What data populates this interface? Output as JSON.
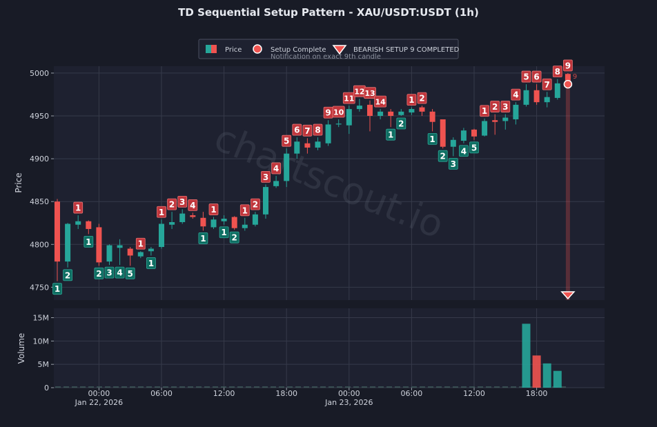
{
  "chart_data": {
    "type": "candlestick",
    "title": "TD Sequential Setup Pattern - XAU/USDT:USDT (1h)",
    "watermark": "chartscout.io",
    "legend": {
      "placement": "top-center",
      "items": [
        {
          "label": "Price"
        },
        {
          "label": "Setup Complete"
        },
        {
          "label": "BEARISH SETUP 9 COMPLETED",
          "sublabel": "Notification on exact 9th candle"
        }
      ]
    },
    "price_panel": {
      "ylabel": "Price",
      "ylim": [
        4735,
        5008
      ],
      "yticks": [
        4750,
        4800,
        4850,
        4900,
        4950,
        5000
      ],
      "grid": true
    },
    "volume_panel": {
      "ylabel": "Volume",
      "ylim": [
        0,
        17000000
      ],
      "yticks": [
        0,
        5000000,
        10000000,
        15000000
      ],
      "ytick_labels": [
        "0",
        "5M",
        "10M",
        "15M"
      ],
      "grid": true
    },
    "x_axis": {
      "start": "2026-01-21T20:00",
      "step_minutes": 60,
      "ticks": [
        {
          "t": 4,
          "label": "00:00",
          "sublabel": "Jan 22, 2026"
        },
        {
          "t": 10,
          "label": "06:00"
        },
        {
          "t": 16,
          "label": "12:00"
        },
        {
          "t": 22,
          "label": "18:00"
        },
        {
          "t": 28,
          "label": "00:00",
          "sublabel": "Jan 23, 2026"
        },
        {
          "t": 34,
          "label": "06:00"
        },
        {
          "t": 40,
          "label": "12:00"
        },
        {
          "t": 46,
          "label": "18:00"
        }
      ]
    },
    "colors": {
      "up": "#26a69a",
      "down": "#ef5350",
      "up_label_bg": "#0e6e62",
      "down_label_bg": "#c0363c",
      "background": "#181b26",
      "panel": "#1e2130",
      "grid": "#363a4a",
      "text": "#cfd3dc"
    },
    "candles": [
      {
        "o": 4850,
        "h": 4853,
        "l": 4757,
        "c": 4780,
        "count": 1,
        "count_dir": "buy"
      },
      {
        "o": 4780,
        "h": 4825,
        "l": 4773,
        "c": 4824,
        "count": 2,
        "count_dir": "buy"
      },
      {
        "o": 4823,
        "h": 4834,
        "l": 4818,
        "c": 4827,
        "count": 1,
        "count_dir": "sell"
      },
      {
        "o": 4827,
        "h": 4828,
        "l": 4812,
        "c": 4818,
        "count": 1,
        "count_dir": "buy"
      },
      {
        "o": 4820,
        "h": 4824,
        "l": 4775,
        "c": 4779,
        "count": 2,
        "count_dir": "buy"
      },
      {
        "o": 4780,
        "h": 4800,
        "l": 4776,
        "c": 4799,
        "count": 3,
        "count_dir": "buy"
      },
      {
        "o": 4796,
        "h": 4806,
        "l": 4776,
        "c": 4799,
        "count": 4,
        "count_dir": "buy"
      },
      {
        "o": 4795,
        "h": 4797,
        "l": 4775,
        "c": 4787,
        "count": 5,
        "count_dir": "buy"
      },
      {
        "o": 4786,
        "h": 4792,
        "l": 4784,
        "c": 4791,
        "count": 1,
        "count_dir": "sell"
      },
      {
        "o": 4792,
        "h": 4797,
        "l": 4787,
        "c": 4795,
        "count": 1,
        "count_dir": "buy"
      },
      {
        "o": 4797,
        "h": 4829,
        "l": 4795,
        "c": 4824,
        "count": 1,
        "count_dir": "sell"
      },
      {
        "o": 4823,
        "h": 4838,
        "l": 4818,
        "c": 4826,
        "count": 2,
        "count_dir": "sell"
      },
      {
        "o": 4826,
        "h": 4841,
        "l": 4824,
        "c": 4836,
        "count": 3,
        "count_dir": "sell"
      },
      {
        "o": 4834,
        "h": 4837,
        "l": 4830,
        "c": 4832,
        "count": 4,
        "count_dir": "sell"
      },
      {
        "o": 4831,
        "h": 4838,
        "l": 4816,
        "c": 4821,
        "count": 1,
        "count_dir": "buy"
      },
      {
        "o": 4820,
        "h": 4832,
        "l": 4818,
        "c": 4829,
        "count": 1,
        "count_dir": "sell"
      },
      {
        "o": 4827,
        "h": 4834,
        "l": 4823,
        "c": 4830,
        "count": 1,
        "count_dir": "buy"
      },
      {
        "o": 4832,
        "h": 4833,
        "l": 4817,
        "c": 4819,
        "count": 2,
        "count_dir": "buy"
      },
      {
        "o": 4819,
        "h": 4831,
        "l": 4816,
        "c": 4823,
        "count": 1,
        "count_dir": "sell"
      },
      {
        "o": 4823,
        "h": 4838,
        "l": 4821,
        "c": 4835,
        "count": 2,
        "count_dir": "sell"
      },
      {
        "o": 4835,
        "h": 4870,
        "l": 4830,
        "c": 4867,
        "count": 3,
        "count_dir": "sell"
      },
      {
        "o": 4868,
        "h": 4880,
        "l": 4866,
        "c": 4874,
        "count": 4,
        "count_dir": "sell"
      },
      {
        "o": 4874,
        "h": 4912,
        "l": 4867,
        "c": 4906,
        "count": 5,
        "count_dir": "sell"
      },
      {
        "o": 4906,
        "h": 4925,
        "l": 4900,
        "c": 4920,
        "count": 6,
        "count_dir": "sell"
      },
      {
        "o": 4918,
        "h": 4924,
        "l": 4906,
        "c": 4913,
        "count": 7,
        "count_dir": "sell"
      },
      {
        "o": 4913,
        "h": 4925,
        "l": 4910,
        "c": 4920,
        "count": 8,
        "count_dir": "sell"
      },
      {
        "o": 4918,
        "h": 4945,
        "l": 4915,
        "c": 4940,
        "count": 9,
        "count_dir": "sell"
      },
      {
        "o": 4940,
        "h": 4946,
        "l": 4937,
        "c": 4941,
        "count": 10,
        "count_dir": "sell"
      },
      {
        "o": 4939,
        "h": 4962,
        "l": 4929,
        "c": 4958,
        "count": 11,
        "count_dir": "sell"
      },
      {
        "o": 4958,
        "h": 4970,
        "l": 4955,
        "c": 4962,
        "count": 12,
        "count_dir": "sell"
      },
      {
        "o": 4963,
        "h": 4968,
        "l": 4932,
        "c": 4950,
        "count": 13,
        "count_dir": "sell"
      },
      {
        "o": 4950,
        "h": 4958,
        "l": 4946,
        "c": 4955,
        "count": 14,
        "count_dir": "sell"
      },
      {
        "o": 4955,
        "h": 4958,
        "l": 4937,
        "c": 4950,
        "count": 1,
        "count_dir": "buy"
      },
      {
        "o": 4951,
        "h": 4958,
        "l": 4950,
        "c": 4955,
        "count": 2,
        "count_dir": "buy"
      },
      {
        "o": 4954,
        "h": 4960,
        "l": 4951,
        "c": 4958,
        "count": 1,
        "count_dir": "sell"
      },
      {
        "o": 4960,
        "h": 4962,
        "l": 4950,
        "c": 4955,
        "count": 2,
        "count_dir": "sell"
      },
      {
        "o": 4955,
        "h": 4958,
        "l": 4932,
        "c": 4943,
        "count": 1,
        "count_dir": "buy"
      },
      {
        "o": 4946,
        "h": 4946,
        "l": 4912,
        "c": 4914,
        "count": 2,
        "count_dir": "buy"
      },
      {
        "o": 4914,
        "h": 4925,
        "l": 4903,
        "c": 4922,
        "count": 3,
        "count_dir": "buy"
      },
      {
        "o": 4921,
        "h": 4936,
        "l": 4918,
        "c": 4933,
        "count": 4,
        "count_dir": "buy"
      },
      {
        "o": 4934,
        "h": 4935,
        "l": 4922,
        "c": 4926,
        "count": 5,
        "count_dir": "buy"
      },
      {
        "o": 4927,
        "h": 4947,
        "l": 4926,
        "c": 4944,
        "count": 1,
        "count_dir": "sell"
      },
      {
        "o": 4945,
        "h": 4952,
        "l": 4928,
        "c": 4943,
        "count": 2,
        "count_dir": "sell"
      },
      {
        "o": 4944,
        "h": 4952,
        "l": 4934,
        "c": 4948,
        "count": 3,
        "count_dir": "sell"
      },
      {
        "o": 4946,
        "h": 4966,
        "l": 4940,
        "c": 4963,
        "count": 4,
        "count_dir": "sell"
      },
      {
        "o": 4963,
        "h": 4987,
        "l": 4961,
        "c": 4980,
        "count": 5,
        "count_dir": "sell"
      },
      {
        "o": 4980,
        "h": 4987,
        "l": 4963,
        "c": 4966,
        "count": 6,
        "count_dir": "sell"
      },
      {
        "o": 4966,
        "h": 4978,
        "l": 4960,
        "c": 4972,
        "count": 7,
        "count_dir": "sell"
      },
      {
        "o": 4971,
        "h": 4993,
        "l": 4969,
        "c": 4988,
        "count": 8,
        "count_dir": "sell"
      },
      {
        "o": 4999,
        "h": 5000,
        "l": 4989,
        "c": 4990,
        "count": 9,
        "count_dir": "sell"
      }
    ],
    "volume": [
      {
        "t": 45,
        "v": 13700000,
        "dir": "up"
      },
      {
        "t": 46,
        "v": 6900000,
        "dir": "down"
      },
      {
        "t": 47,
        "v": 5200000,
        "dir": "up"
      },
      {
        "t": 48,
        "v": 3600000,
        "dir": "up"
      }
    ],
    "annotations": [
      {
        "type": "setup_complete_marker",
        "candle": 49,
        "price": 4987,
        "label": "9"
      },
      {
        "type": "bearish_triangle",
        "candle": 49
      },
      {
        "type": "highlight_band",
        "candle": 49
      }
    ]
  }
}
